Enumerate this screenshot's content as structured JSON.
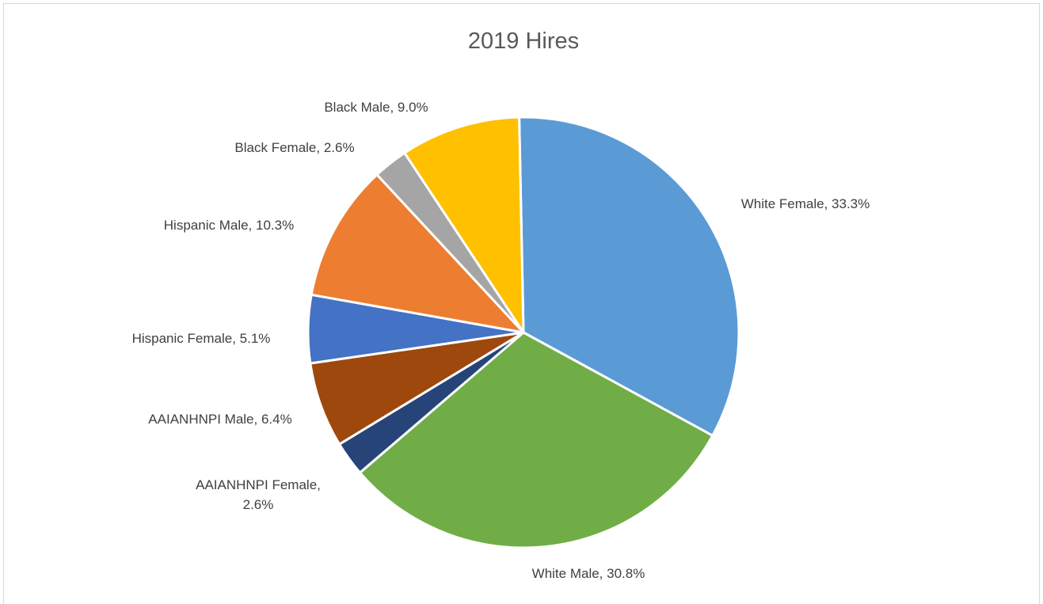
{
  "chart_data": {
    "type": "pie",
    "title": "2019 Hires",
    "slices": [
      {
        "name": "White Female",
        "value": 33.3,
        "label": "White Female, 33.3%",
        "color": "#5b9bd5"
      },
      {
        "name": "White Male",
        "value": 30.8,
        "label": "White Male, 30.8%",
        "color": "#70ad47"
      },
      {
        "name": "AAIANHNPI Female",
        "value": 2.6,
        "label": "AAIANHNPI Female, 2.6%",
        "color": "#264478"
      },
      {
        "name": "AAIANHNPI Male",
        "value": 6.4,
        "label": "AAIANHNPI Male, 6.4%",
        "color": "#9e480e"
      },
      {
        "name": "Hispanic Female",
        "value": 5.1,
        "label": "Hispanic Female, 5.1%",
        "color": "#4472c4"
      },
      {
        "name": "Hispanic Male",
        "value": 10.3,
        "label": "Hispanic Male, 10.3%",
        "color": "#ed7d31"
      },
      {
        "name": "Black Female",
        "value": 2.6,
        "label": "Black Female, 2.6%",
        "color": "#a5a5a5"
      },
      {
        "name": "Black Male",
        "value": 9.0,
        "label": "Black Male, 9.0%",
        "color": "#ffc000"
      }
    ],
    "legend": "none",
    "data_labels": "outside"
  }
}
